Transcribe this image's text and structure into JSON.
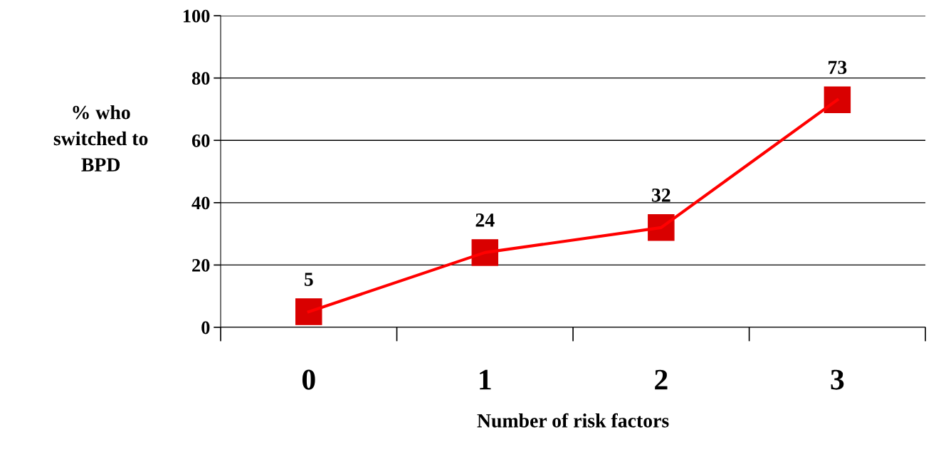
{
  "chart_data": {
    "type": "line",
    "xlabel": "Number of risk factors",
    "ylabel": "% who\nswitched to\nBPD",
    "categories": [
      "0",
      "1",
      "2",
      "3"
    ],
    "series": [
      {
        "color": "#ff0000",
        "values": [
          5,
          24,
          32,
          73
        ]
      }
    ],
    "ylim": [
      0,
      100
    ],
    "yticks": [
      0,
      20,
      40,
      60,
      80,
      100
    ],
    "grid": "y",
    "marker": "square",
    "line_style": "solid",
    "data_labels": true,
    "legend": false
  }
}
